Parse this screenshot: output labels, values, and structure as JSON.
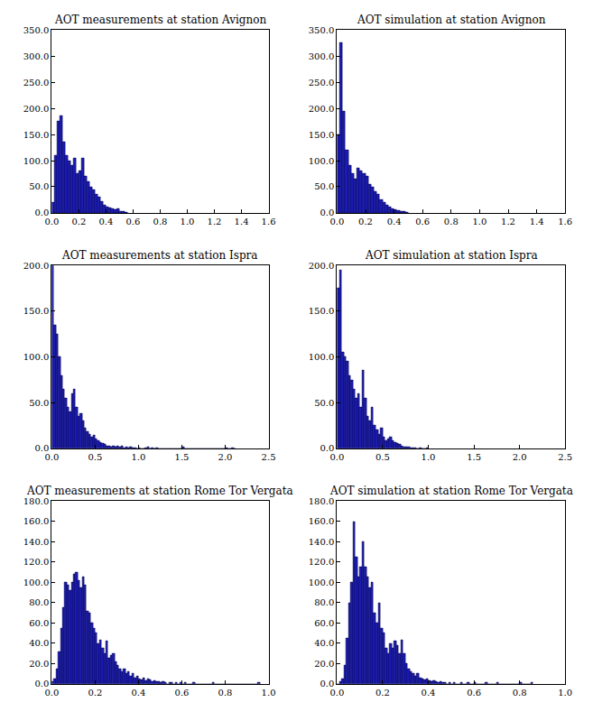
{
  "chart_data": [
    {
      "type": "histogram",
      "title": "AOT measurements at station Avignon",
      "color": "#1a1ab4",
      "bins": [
        0,
        0.02,
        0.04,
        0.06,
        0.08,
        0.1,
        0.12,
        0.14,
        0.16,
        0.18,
        0.2,
        0.22,
        0.24,
        0.26,
        0.28,
        0.3,
        0.32,
        0.34,
        0.36,
        0.38,
        0.4,
        0.42,
        0.44,
        0.46,
        0.48,
        0.5,
        0.52,
        0.54,
        0.56
      ],
      "values": [
        20,
        110,
        175,
        185,
        135,
        110,
        100,
        90,
        105,
        75,
        80,
        105,
        70,
        60,
        50,
        45,
        35,
        30,
        22,
        15,
        12,
        10,
        8,
        6,
        8,
        3,
        2,
        1
      ],
      "xlim": [
        0,
        1.6
      ],
      "xticks": [
        {
          "value": 0,
          "label": "0.0"
        },
        0.2,
        0.4,
        0.6,
        0.8,
        {
          "value": 1,
          "label": "1.0"
        },
        1.2,
        1.4,
        1.6
      ],
      "ylim": [
        0,
        350
      ],
      "yticks": [
        {
          "value": 0,
          "label": "0.0"
        },
        {
          "value": 50,
          "label": "50.0"
        },
        {
          "value": 100,
          "label": "100.0"
        },
        {
          "value": 150,
          "label": "150.0"
        },
        {
          "value": 200,
          "label": "200.0"
        },
        {
          "value": 250,
          "label": "250.0"
        },
        {
          "value": 300,
          "label": "300.0"
        },
        {
          "value": 350,
          "label": "350.0"
        }
      ]
    },
    {
      "type": "histogram",
      "title": "AOT simulation at station Avignon",
      "color": "#1a1ab4",
      "bins": [
        0,
        0.02,
        0.04,
        0.06,
        0.08,
        0.1,
        0.12,
        0.14,
        0.16,
        0.18,
        0.2,
        0.22,
        0.24,
        0.26,
        0.28,
        0.3,
        0.32,
        0.34,
        0.36,
        0.38,
        0.4,
        0.42,
        0.44,
        0.46,
        0.48,
        0.5
      ],
      "values": [
        150,
        325,
        195,
        120,
        90,
        75,
        65,
        85,
        80,
        75,
        70,
        55,
        50,
        40,
        35,
        25,
        20,
        15,
        12,
        8,
        6,
        4,
        3,
        2,
        1
      ],
      "xlim": [
        0,
        1.6
      ],
      "xticks": [
        {
          "value": 0,
          "label": "0.0"
        },
        0.2,
        0.4,
        0.6,
        0.8,
        {
          "value": 1,
          "label": "1.0"
        },
        1.2,
        1.4,
        1.6
      ],
      "ylim": [
        0,
        350
      ],
      "yticks": [
        {
          "value": 0,
          "label": "0.0"
        },
        {
          "value": 50,
          "label": "50.0"
        },
        {
          "value": 100,
          "label": "100.0"
        },
        {
          "value": 150,
          "label": "150.0"
        },
        {
          "value": 200,
          "label": "200.0"
        },
        {
          "value": 250,
          "label": "250.0"
        },
        {
          "value": 300,
          "label": "300.0"
        },
        {
          "value": 350,
          "label": "350.0"
        }
      ]
    },
    {
      "type": "histogram",
      "title": "AOT measurements at station Ispra",
      "color": "#1a1ab4",
      "bins": [
        0,
        0.025,
        0.05,
        0.075,
        0.1,
        0.125,
        0.15,
        0.175,
        0.2,
        0.225,
        0.25,
        0.275,
        0.3,
        0.325,
        0.35,
        0.375,
        0.4,
        0.425,
        0.45,
        0.475,
        0.5,
        0.525,
        0.55,
        0.575,
        0.6,
        0.625,
        0.65,
        0.675,
        0.7,
        0.725,
        0.75,
        0.775,
        0.8,
        0.825,
        0.85,
        0.875,
        0.9,
        0.925,
        0.95,
        0.975,
        1,
        1.025,
        1.05,
        1.075,
        1.1,
        1.125,
        1.15,
        1.175,
        1.2,
        1.225,
        1.25,
        1.275,
        1.3,
        1.325,
        1.35,
        1.375,
        1.4,
        1.425,
        1.45,
        1.475,
        1.5,
        1.525,
        1.55,
        1.575,
        1.6,
        1.625,
        1.65,
        1.675,
        1.7,
        1.725,
        1.75,
        1.775,
        1.8,
        1.825,
        1.85,
        1.875,
        1.9,
        1.925,
        1.95,
        1.975,
        2,
        2.025,
        2.05,
        2.075,
        2.1,
        2.125
      ],
      "values": [
        200,
        135,
        125,
        100,
        80,
        65,
        55,
        45,
        40,
        60,
        65,
        45,
        35,
        38,
        30,
        22,
        18,
        15,
        12,
        14,
        10,
        8,
        6,
        5,
        4,
        3,
        3,
        2,
        3,
        2,
        3,
        2,
        3,
        1,
        2,
        1,
        2,
        1,
        1,
        0,
        1,
        0,
        0,
        1,
        2,
        0,
        1,
        0,
        1,
        0,
        0,
        0,
        0,
        0,
        0,
        0,
        0,
        0,
        0,
        0,
        2,
        0,
        0,
        0,
        0,
        0,
        0,
        0,
        0,
        0,
        0,
        0,
        0,
        0,
        0,
        0,
        0,
        0,
        0,
        0,
        1,
        0,
        0,
        1,
        0
      ],
      "xlim": [
        0,
        2.5
      ],
      "xticks": [
        {
          "value": 0,
          "label": "0.0"
        },
        0.5,
        {
          "value": 1,
          "label": "1.0"
        },
        1.5,
        {
          "value": 2,
          "label": "2.0"
        },
        2.5
      ],
      "ylim": [
        0,
        200
      ],
      "yticks": [
        {
          "value": 0,
          "label": "0.0"
        },
        {
          "value": 50,
          "label": "50.0"
        },
        {
          "value": 100,
          "label": "100.0"
        },
        {
          "value": 150,
          "label": "150.0"
        },
        {
          "value": 200,
          "label": "200.0"
        }
      ]
    },
    {
      "type": "histogram",
      "title": "AOT simulation at station Ispra",
      "color": "#1a1ab4",
      "bins": [
        0,
        0.025,
        0.05,
        0.075,
        0.1,
        0.125,
        0.15,
        0.175,
        0.2,
        0.225,
        0.25,
        0.275,
        0.3,
        0.325,
        0.35,
        0.375,
        0.4,
        0.425,
        0.45,
        0.475,
        0.5,
        0.525,
        0.55,
        0.575,
        0.6,
        0.625,
        0.65,
        0.675,
        0.7,
        0.725,
        0.75,
        0.775,
        0.8,
        0.825,
        0.85,
        0.875,
        0.9,
        0.925,
        0.95,
        0.975,
        1
      ],
      "values": [
        175,
        195,
        105,
        100,
        95,
        80,
        75,
        65,
        55,
        60,
        45,
        85,
        55,
        35,
        30,
        45,
        25,
        20,
        15,
        22,
        12,
        8,
        10,
        12,
        8,
        6,
        5,
        4,
        3,
        2,
        2,
        2,
        1,
        1,
        1,
        0,
        1,
        0,
        0,
        1
      ],
      "xlim": [
        0,
        2.5
      ],
      "xticks": [
        {
          "value": 0,
          "label": "0.0"
        },
        0.5,
        {
          "value": 1,
          "label": "1.0"
        },
        1.5,
        {
          "value": 2,
          "label": "2.0"
        },
        2.5
      ],
      "ylim": [
        0,
        200
      ],
      "yticks": [
        {
          "value": 0,
          "label": "0.0"
        },
        {
          "value": 50,
          "label": "50.0"
        },
        {
          "value": 100,
          "label": "100.0"
        },
        {
          "value": 150,
          "label": "150.0"
        },
        {
          "value": 200,
          "label": "200.0"
        }
      ]
    },
    {
      "type": "histogram",
      "title": "AOT measurements at station Rome Tor Vergata",
      "color": "#1a1ab4",
      "bins": [
        0,
        0.01,
        0.02,
        0.03,
        0.04,
        0.05,
        0.06,
        0.07,
        0.08,
        0.09,
        0.1,
        0.11,
        0.12,
        0.13,
        0.14,
        0.15,
        0.16,
        0.17,
        0.18,
        0.19,
        0.2,
        0.21,
        0.22,
        0.23,
        0.24,
        0.25,
        0.26,
        0.27,
        0.28,
        0.29,
        0.3,
        0.31,
        0.32,
        0.33,
        0.34,
        0.35,
        0.36,
        0.37,
        0.38,
        0.39,
        0.4,
        0.41,
        0.42,
        0.43,
        0.44,
        0.45,
        0.46,
        0.47,
        0.48,
        0.49,
        0.5,
        0.51,
        0.52,
        0.53,
        0.54,
        0.55,
        0.56,
        0.57,
        0.58,
        0.59,
        0.6,
        0.61,
        0.62,
        0.63,
        0.64,
        0.65,
        0.66,
        0.67,
        0.68,
        0.69,
        0.7,
        0.71,
        0.72,
        0.73,
        0.74,
        0.75,
        0.76,
        0.77,
        0.78,
        0.79,
        0.8,
        0.81,
        0.82,
        0.83,
        0.84,
        0.85,
        0.86,
        0.87,
        0.88,
        0.89,
        0.9,
        0.91,
        0.92,
        0.93,
        0.94,
        0.95,
        0.96
      ],
      "values": [
        2,
        5,
        15,
        32,
        55,
        75,
        100,
        97,
        92,
        100,
        108,
        110,
        102,
        95,
        105,
        97,
        72,
        70,
        60,
        55,
        50,
        40,
        43,
        35,
        30,
        42,
        25,
        28,
        30,
        22,
        18,
        15,
        12,
        15,
        10,
        12,
        8,
        10,
        6,
        8,
        5,
        4,
        6,
        3,
        5,
        4,
        2,
        3,
        2,
        2,
        1,
        2,
        1,
        0,
        1,
        1,
        0,
        1,
        0,
        1,
        0,
        1,
        0,
        0,
        0,
        1,
        0,
        0,
        0,
        0,
        0,
        0,
        0,
        0,
        1,
        0,
        0,
        0,
        0,
        0,
        0,
        0,
        0,
        0,
        0,
        0,
        0,
        0,
        0,
        0,
        0,
        0,
        0,
        0,
        0,
        1
      ],
      "xlim": [
        0,
        1
      ],
      "xticks": [
        {
          "value": 0,
          "label": "0.0"
        },
        0.2,
        0.4,
        0.6,
        0.8,
        {
          "value": 1,
          "label": "1.0"
        }
      ],
      "ylim": [
        0,
        180
      ],
      "yticks": [
        {
          "value": 0,
          "label": "0.0"
        },
        {
          "value": 20,
          "label": "20.0"
        },
        {
          "value": 40,
          "label": "40.0"
        },
        {
          "value": 60,
          "label": "60.0"
        },
        {
          "value": 80,
          "label": "80.0"
        },
        {
          "value": 100,
          "label": "100.0"
        },
        {
          "value": 120,
          "label": "120.0"
        },
        {
          "value": 140,
          "label": "140.0"
        },
        {
          "value": 160,
          "label": "160.0"
        },
        {
          "value": 180,
          "label": "180.0"
        }
      ]
    },
    {
      "type": "histogram",
      "title": "AOT simulation at station Rome Tor Vergata",
      "color": "#1a1ab4",
      "bins": [
        0,
        0.01,
        0.02,
        0.03,
        0.04,
        0.05,
        0.06,
        0.07,
        0.08,
        0.09,
        0.1,
        0.11,
        0.12,
        0.13,
        0.14,
        0.15,
        0.16,
        0.17,
        0.18,
        0.19,
        0.2,
        0.21,
        0.22,
        0.23,
        0.24,
        0.25,
        0.26,
        0.27,
        0.28,
        0.29,
        0.3,
        0.31,
        0.32,
        0.33,
        0.34,
        0.35,
        0.36,
        0.37,
        0.38,
        0.39,
        0.4,
        0.41,
        0.42,
        0.43,
        0.44,
        0.45,
        0.46,
        0.47,
        0.48,
        0.49,
        0.5,
        0.51,
        0.52,
        0.53,
        0.54,
        0.55,
        0.56,
        0.57,
        0.58,
        0.59,
        0.6,
        0.61,
        0.62,
        0.63,
        0.64,
        0.65,
        0.66,
        0.67,
        0.68,
        0.69,
        0.7,
        0.71,
        0.72,
        0.73,
        0.74,
        0.75,
        0.76,
        0.77,
        0.78,
        0.79,
        0.8,
        0.81,
        0.82,
        0.83,
        0.84,
        0.85,
        0.86
      ],
      "values": [
        0,
        2,
        5,
        18,
        45,
        80,
        100,
        160,
        125,
        105,
        115,
        140,
        115,
        105,
        95,
        100,
        70,
        60,
        80,
        55,
        50,
        35,
        30,
        40,
        35,
        42,
        38,
        30,
        43,
        30,
        20,
        15,
        12,
        10,
        8,
        10,
        6,
        5,
        4,
        5,
        3,
        2,
        3,
        2,
        1,
        2,
        1,
        1,
        0,
        1,
        0,
        1,
        0,
        0,
        1,
        0,
        0,
        1,
        0,
        0,
        1,
        0,
        0,
        0,
        0,
        1,
        0,
        0,
        0,
        0,
        1,
        0,
        0,
        0,
        0,
        0,
        0,
        0,
        0,
        0,
        1,
        0,
        0,
        0,
        0,
        1
      ],
      "xlim": [
        0,
        1
      ],
      "xticks": [
        {
          "value": 0,
          "label": "0.0"
        },
        0.2,
        0.4,
        0.6,
        0.8,
        {
          "value": 1,
          "label": "1.0"
        }
      ],
      "ylim": [
        0,
        180
      ],
      "yticks": [
        {
          "value": 0,
          "label": "0.0"
        },
        {
          "value": 20,
          "label": "20.0"
        },
        {
          "value": 40,
          "label": "40.0"
        },
        {
          "value": 60,
          "label": "60.0"
        },
        {
          "value": 80,
          "label": "80.0"
        },
        {
          "value": 100,
          "label": "100.0"
        },
        {
          "value": 120,
          "label": "120.0"
        },
        {
          "value": 140,
          "label": "140.0"
        },
        {
          "value": 160,
          "label": "160.0"
        },
        {
          "value": 180,
          "label": "180.0"
        }
      ]
    }
  ]
}
